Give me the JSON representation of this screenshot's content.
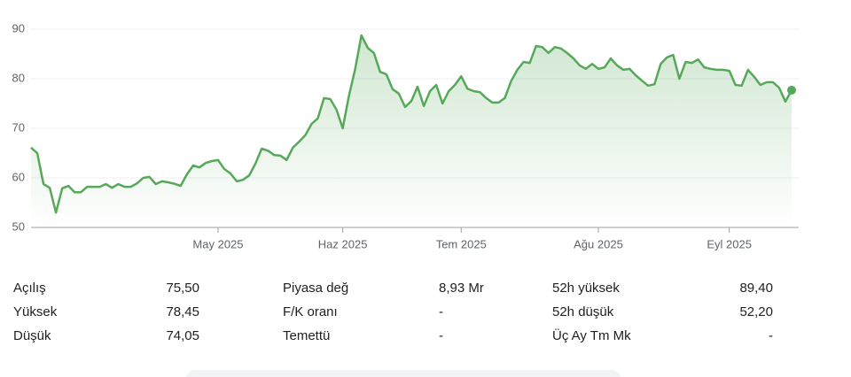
{
  "chart_data": {
    "type": "line",
    "color": "#57a95a",
    "grid": true,
    "categories": [
      null,
      null,
      null,
      null,
      null,
      null,
      null,
      null,
      null,
      null,
      null,
      null,
      null,
      null,
      null,
      null,
      null,
      null,
      null,
      null,
      null,
      null,
      null,
      null,
      null,
      null,
      null,
      null,
      null,
      null,
      "May 2025",
      null,
      null,
      null,
      null,
      null,
      null,
      null,
      null,
      null,
      null,
      null,
      null,
      null,
      null,
      null,
      null,
      null,
      null,
      null,
      "Haz 2025",
      null,
      null,
      null,
      null,
      null,
      null,
      null,
      null,
      null,
      null,
      null,
      null,
      null,
      null,
      null,
      null,
      null,
      null,
      "Tem 2025",
      null,
      null,
      null,
      null,
      null,
      null,
      null,
      null,
      null,
      null,
      null,
      null,
      null,
      null,
      null,
      null,
      null,
      null,
      null,
      null,
      null,
      "Ağu 2025",
      null,
      null,
      null,
      null,
      null,
      null,
      null,
      null,
      null,
      null,
      null,
      null,
      null,
      null,
      null,
      null,
      null,
      null,
      null,
      null,
      "Eyl 2025",
      null,
      null,
      null,
      null,
      null,
      null,
      null,
      null,
      null,
      null
    ],
    "values": [
      66.1,
      65,
      58.75,
      58,
      53,
      57.9,
      58.4,
      57.1,
      57.1,
      58.2,
      58.2,
      58.2,
      58.75,
      58,
      58.75,
      58.2,
      58.2,
      58.9,
      60,
      60.2,
      58.75,
      59.3,
      59.1,
      58.8,
      58.4,
      60.7,
      62.5,
      62.1,
      63,
      63.4,
      63.6,
      61.8,
      60.9,
      59.3,
      59.6,
      60.5,
      62.9,
      65.9,
      65.5,
      64.6,
      64.5,
      63.6,
      66.1,
      67.3,
      68.6,
      70.9,
      72,
      76.1,
      75.9,
      73.75,
      70,
      76.6,
      82,
      88.75,
      86.25,
      85.2,
      81.4,
      80.9,
      77.9,
      77,
      74.3,
      75.5,
      78.4,
      74.5,
      77.5,
      78.75,
      75,
      77.5,
      78.75,
      80.5,
      78,
      77.5,
      77.3,
      76.1,
      75.2,
      75.2,
      76.1,
      79.5,
      81.8,
      83.4,
      83.2,
      86.6,
      86.4,
      85.2,
      86.4,
      86.1,
      85.2,
      84.1,
      82.7,
      82,
      83,
      82,
      82.3,
      84.1,
      82.7,
      81.8,
      82,
      80.7,
      79.6,
      78.6,
      78.9,
      83,
      84.3,
      84.8,
      80,
      83.4,
      83.2,
      83.9,
      82.3,
      82,
      81.8,
      81.8,
      81.6,
      78.75,
      78.6,
      81.8,
      80.4,
      78.75,
      79.3,
      79.3,
      78.2,
      75.4,
      77.7
    ],
    "ylim": [
      50,
      90
    ],
    "yticks": [
      50,
      60,
      70,
      80,
      90
    ]
  },
  "stats": [
    [
      [
        "Açılış",
        "75,50"
      ],
      [
        "Yüksek",
        "78,45"
      ],
      [
        "Düşük",
        "74,05"
      ]
    ],
    [
      [
        "Piyasa değ",
        "8,93 Mr"
      ],
      [
        "F/K oranı",
        "-"
      ],
      [
        "Temettü",
        "-"
      ]
    ],
    [
      [
        "52h yüksek",
        "89,40"
      ],
      [
        "52h düşük",
        "52,20"
      ],
      [
        "Üç Ay Tm Mk",
        "-"
      ]
    ]
  ]
}
